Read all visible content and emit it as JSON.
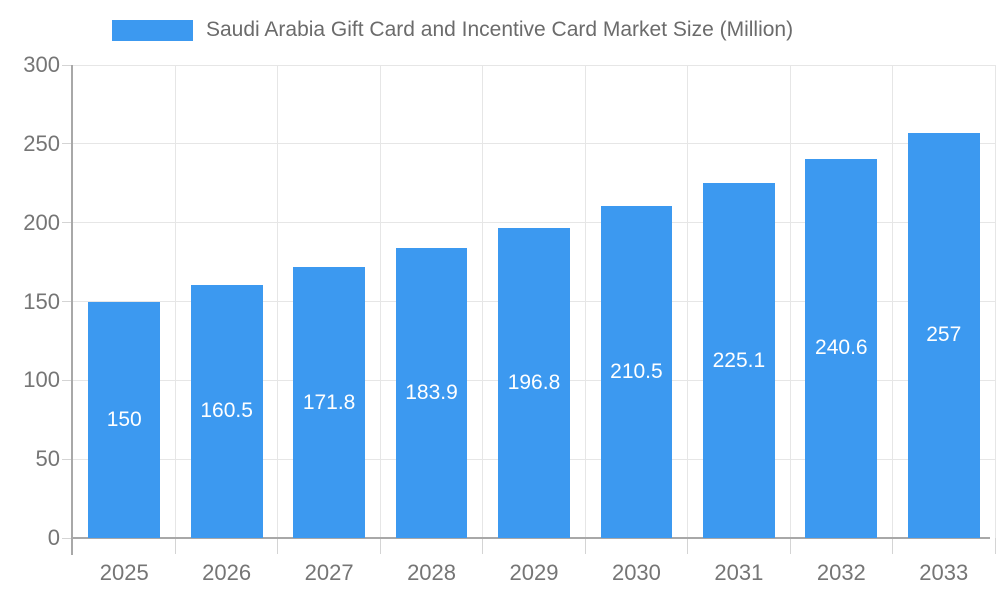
{
  "chart_data": {
    "type": "bar",
    "title": "Saudi Arabia Gift Card and Incentive Card Market Size (Million)",
    "categories": [
      "2025",
      "2026",
      "2027",
      "2028",
      "2029",
      "2030",
      "2031",
      "2032",
      "2033"
    ],
    "values": [
      150,
      160.5,
      171.8,
      183.9,
      196.8,
      210.5,
      225.1,
      240.6,
      257
    ],
    "xlabel": "",
    "ylabel": "",
    "ylim": [
      0,
      300
    ],
    "yticks": [
      0,
      50,
      100,
      150,
      200,
      250,
      300
    ],
    "grid": true,
    "legend_position": "top"
  },
  "colors": {
    "bar": "#3C99F0",
    "grid": "#e6e6e6",
    "tick": "#d4d4d4",
    "axis": "#a8a8a8",
    "axis_label": "#757575",
    "title": "#6b6b6b",
    "bar_label": "#ffffff",
    "background": "#ffffff"
  }
}
